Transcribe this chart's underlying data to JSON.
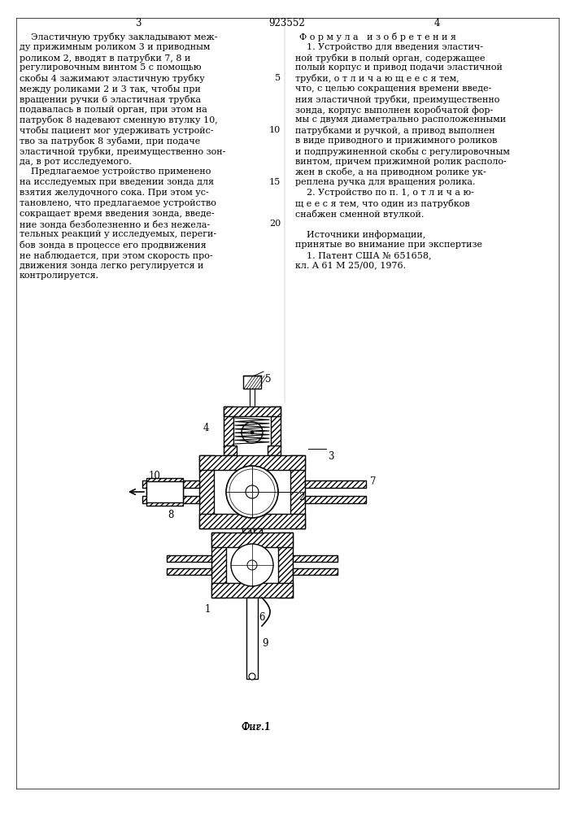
{
  "bg_color": "#ffffff",
  "page_num_left": "3",
  "page_num_center": "923552",
  "page_num_right": "4",
  "left_col_lines": [
    "    Эластичную трубку закладывают меж-",
    "ду прижимным роликом 3 и приводным",
    "роликом 2, вводят в патрубки 7, 8 и",
    "регулировочным винтом 5 с помощью",
    "скобы 4 зажимают эластичную трубку",
    "между роликами 2 и 3 так, чтобы при",
    "вращении ручки 6 эластичная трубка",
    "подавалась в полый орган, при этом на",
    "патрубок 8 надевают сменную втулку 10,",
    "чтобы пациент мог удерживать устройс-",
    "тво за патрубок 8 зубами, при подаче",
    "эластичной трубки, преимущественно зон-",
    "да, в рот исследуемого.",
    "    Предлагаемое устройство применено",
    "на исследуемых при введении зонда для",
    "взятия желудочного сока. При этом ус-",
    "тановлено, что предлагаемое устройство",
    "сокращает время введения зонда, введе-",
    "ние зонда безболезненно и без нежела-",
    "тельных реакций у исследуемых, переги-",
    "бов зонда в процессе его продвижения",
    "не наблюдается, при этом скорость про-",
    "движения зонда легко регулируется и",
    "контролируется."
  ],
  "right_header": "Ф о р м у л а   и з о б р е т е н и я",
  "right_col_lines": [
    "    1. Устройство для введения эластич-",
    "ной трубки в полый орган, содержащее",
    "полый корпус и привод подачи эластичной",
    "трубки, о т л и ч а ю щ е е с я тем,",
    "что, с целью сокращения времени введе-",
    "ния эластичной трубки, преимущественно",
    "зонда, корпус выполнен коробчатой фор-",
    "мы с двумя диаметрально расположенными",
    "патрубками и ручкой, а привод выполнен",
    "в виде приводного и прижимного роликов",
    "и подпружиненной скобы с регулировочным",
    "винтом, причем прижимной ролик располо-",
    "жен в скобе, а на приводном ролике ук-",
    "реплена ручка для вращения ролика.",
    "    2. Устройство по п. 1, о т л и ч а ю-",
    "щ е е с я тем, что один из патрубков",
    "снабжен сменной втулкой.",
    "",
    "    Источники информации,",
    "принятые во внимание при экспертизе",
    "    1. Патент США № 651658,",
    "кл. A 61 M 25/00, 1976."
  ],
  "line_numbers": {
    "3": "5",
    "8": "10",
    "13": "15",
    "17": "20"
  },
  "fig_label": "Фиг.1",
  "fs_body": 8.0,
  "fs_small": 7.5
}
